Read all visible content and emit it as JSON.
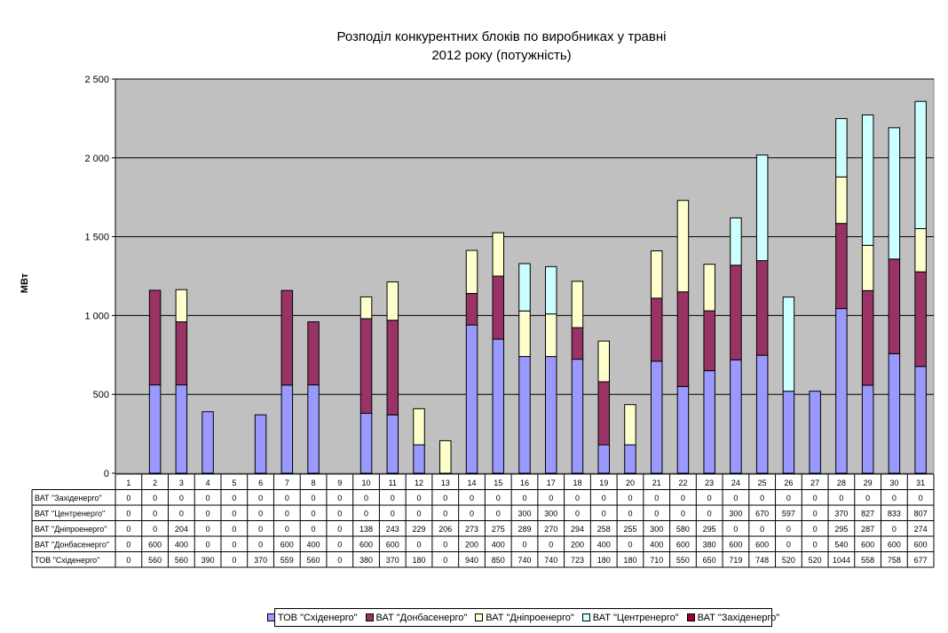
{
  "chart_data": {
    "type": "bar",
    "stacked": true,
    "title": "Розподіл конкурентних блоків по виробниках у травні",
    "subtitle": "2012 року (потужність)",
    "ylabel": "МВт",
    "xlabel": "",
    "ylim": [
      0,
      2500
    ],
    "yticks": [
      0,
      500,
      1000,
      1500,
      2000,
      2500
    ],
    "ytick_labels": [
      "0",
      "500",
      "1 000",
      "1 500",
      "2 000",
      "2 500"
    ],
    "grid": true,
    "legend_position": "bottom",
    "plot_background": "#c0c0c0",
    "categories": [
      "1",
      "2",
      "3",
      "4",
      "5",
      "6",
      "7",
      "8",
      "9",
      "10",
      "11",
      "12",
      "13",
      "14",
      "15",
      "16",
      "17",
      "18",
      "19",
      "20",
      "21",
      "22",
      "23",
      "24",
      "25",
      "26",
      "27",
      "28",
      "29",
      "30",
      "31"
    ],
    "stack_order": [
      "ТОВ \"Сxiденерго\"",
      "ВАТ \"Донбасенерго\"",
      "ВАТ \"Дніпроенерго\"",
      "ВАТ \"Центренерго\"",
      "ВАТ \"Західенерго\""
    ],
    "series": [
      {
        "name": "ТОВ \"Сxiденерго\"",
        "table_label": "ТОВ \"Сxiденерго\"",
        "color": "#9999ff",
        "values": [
          0,
          560,
          560,
          390,
          0,
          370,
          559,
          560,
          0,
          380,
          370,
          180,
          0,
          940,
          850,
          740,
          740,
          723,
          180,
          180,
          710,
          550,
          650,
          719,
          748,
          520,
          520,
          1044,
          558,
          758,
          677
        ]
      },
      {
        "name": "ВАТ \"Донбасенерго\"",
        "table_label": "ВАТ \"Донбасенерго\"",
        "color": "#993366",
        "values": [
          0,
          600,
          400,
          0,
          0,
          0,
          600,
          400,
          0,
          600,
          600,
          0,
          0,
          200,
          400,
          0,
          0,
          200,
          400,
          0,
          400,
          600,
          380,
          600,
          600,
          0,
          0,
          540,
          600,
          600,
          600
        ]
      },
      {
        "name": "ВАТ \"Дніпроенерго\"",
        "table_label": "ВАТ \"Дніпроенерго\"",
        "color": "#ffffcc",
        "values": [
          0,
          0,
          204,
          0,
          0,
          0,
          0,
          0,
          0,
          138,
          243,
          229,
          206,
          273,
          275,
          289,
          270,
          294,
          258,
          255,
          300,
          580,
          295,
          0,
          0,
          0,
          0,
          295,
          287,
          0,
          274
        ]
      },
      {
        "name": "ВАТ \"Центренерго\"",
        "table_label": "ВАТ \"Центренерго\"",
        "color": "#ccffff",
        "values": [
          0,
          0,
          0,
          0,
          0,
          0,
          0,
          0,
          0,
          0,
          0,
          0,
          0,
          0,
          0,
          300,
          300,
          0,
          0,
          0,
          0,
          0,
          0,
          300,
          670,
          597,
          0,
          370,
          827,
          833,
          807
        ]
      },
      {
        "name": "ВАТ \"Західенерго\"",
        "table_label": "ВАТ \"Заxiденерго\"",
        "color": "#990033",
        "values": [
          0,
          0,
          0,
          0,
          0,
          0,
          0,
          0,
          0,
          0,
          0,
          0,
          0,
          0,
          0,
          0,
          0,
          0,
          0,
          0,
          0,
          0,
          0,
          0,
          0,
          0,
          0,
          0,
          0,
          0,
          0
        ]
      }
    ],
    "table_row_order": [
      "ВАТ \"Західенерго\"",
      "ВАТ \"Центренерго\"",
      "ВАТ \"Дніпроенерго\"",
      "ВАТ \"Донбасенерго\"",
      "ТОВ \"Сxiденерго\""
    ],
    "legend_order": [
      "ТОВ \"Сxiденерго\"",
      "ВАТ \"Донбасенерго\"",
      "ВАТ \"Дніпроенерго\"",
      "ВАТ \"Центренерго\"",
      "ВАТ \"Західенерго\""
    ]
  }
}
